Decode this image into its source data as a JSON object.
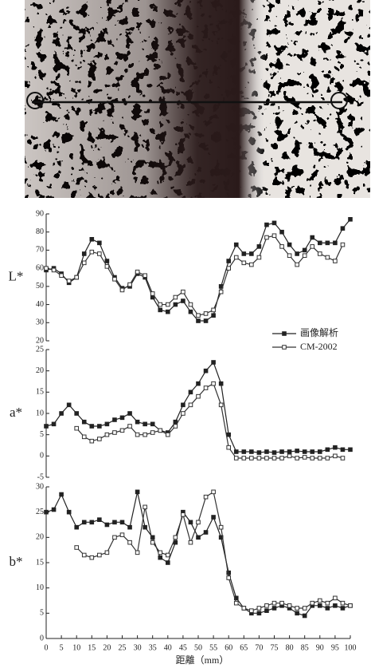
{
  "chart_data": {
    "type": "line",
    "xlabel": "距離（mm）",
    "x": [
      0,
      2.5,
      5,
      7.5,
      10,
      12.5,
      15,
      17.5,
      20,
      22.5,
      25,
      27.5,
      30,
      32.5,
      35,
      37.5,
      40,
      42.5,
      45,
      47.5,
      50,
      52.5,
      55,
      57.5,
      60,
      62.5,
      65,
      67.5,
      70,
      72.5,
      75,
      77.5,
      80,
      82.5,
      85,
      87.5,
      90,
      92.5,
      95,
      97.5,
      100
    ],
    "xlim": [
      0,
      100
    ],
    "xticks": [
      0,
      5,
      10,
      15,
      20,
      25,
      30,
      35,
      40,
      45,
      50,
      55,
      60,
      65,
      70,
      75,
      80,
      85,
      90,
      95,
      100
    ],
    "series": [
      {
        "name": "画像解析",
        "color": "#222222",
        "marker": "filled-square"
      },
      {
        "name": "CM-2002",
        "color": "#333333",
        "marker": "open-square"
      }
    ],
    "panels": [
      {
        "ylabel": "L*",
        "ylim": [
          20,
          90
        ],
        "yticks": [
          20,
          30,
          40,
          50,
          60,
          70,
          80,
          90
        ],
        "series": [
          {
            "values": [
              59,
              60,
              57,
              52,
              55,
              68,
              76,
              74,
              64,
              55,
              49,
              50,
              57,
              55,
              44,
              37,
              36,
              40,
              42,
              36,
              31,
              31,
              34,
              50,
              64,
              73,
              68,
              68,
              72,
              84,
              85,
              80,
              73,
              68,
              70,
              77,
              74,
              74,
              74,
              82,
              87
            ]
          },
          {
            "values": [
              60,
              59,
              56,
              53,
              55,
              63,
              69,
              68,
              61,
              54,
              48,
              51,
              58,
              56,
              46,
              40,
              40,
              44,
              47,
              40,
              34,
              35,
              37,
              47,
              60,
              66,
              63,
              62,
              66,
              77,
              78,
              72,
              67,
              62,
              67,
              72,
              68,
              66,
              64,
              73,
              null
            ]
          }
        ]
      },
      {
        "ylabel": "a*",
        "ylim": [
          -5,
          25
        ],
        "yticks": [
          -5,
          0,
          5,
          10,
          15,
          20,
          25
        ],
        "series": [
          {
            "values": [
              7,
              7.5,
              10,
              12,
              10,
              8,
              7,
              7,
              7.5,
              8.5,
              9,
              10,
              8,
              7.5,
              7.5,
              6,
              5.5,
              8,
              12,
              15,
              17,
              20,
              22,
              17,
              5,
              1,
              1,
              1,
              0.8,
              1,
              0.8,
              1,
              1,
              1.2,
              1,
              1,
              1,
              1.5,
              2,
              1.5,
              1.5
            ]
          },
          {
            "values": [
              null,
              null,
              null,
              null,
              6.5,
              4.5,
              3.5,
              4,
              5,
              5.5,
              6,
              7,
              5,
              5,
              5.5,
              6,
              5,
              7,
              10,
              12,
              14,
              16,
              17,
              12,
              2,
              -0.5,
              -0.5,
              -0.5,
              -0.5,
              -0.5,
              -0.5,
              -0.5,
              0,
              -0.5,
              -0.3,
              -0.5,
              -0.5,
              -0.5,
              0,
              -0.5,
              null
            ]
          }
        ]
      },
      {
        "ylabel": "b*",
        "ylim": [
          0,
          30
        ],
        "yticks": [
          0,
          5,
          10,
          15,
          20,
          25,
          30
        ],
        "series": [
          {
            "values": [
              25,
              25.5,
              28.5,
              25,
              22,
              23,
              23,
              23.5,
              22.5,
              23,
              23,
              22,
              29,
              22,
              20,
              16,
              15,
              19,
              25,
              23,
              20,
              21,
              24,
              20,
              13,
              8,
              6,
              5,
              5,
              5.5,
              6,
              6.5,
              6,
              5,
              4.5,
              6.5,
              6.5,
              6,
              6.5,
              6,
              6.5
            ]
          },
          {
            "values": [
              null,
              null,
              null,
              null,
              18,
              16.5,
              16,
              16.5,
              17,
              20,
              20.5,
              19,
              17,
              26,
              19,
              17,
              16.5,
              20,
              24.5,
              19,
              23,
              28,
              29,
              22,
              12,
              7,
              6,
              5.5,
              6,
              6.5,
              7,
              7,
              6.5,
              6,
              6,
              7,
              7.5,
              7,
              8,
              7,
              6.5
            ]
          }
        ]
      }
    ]
  }
}
